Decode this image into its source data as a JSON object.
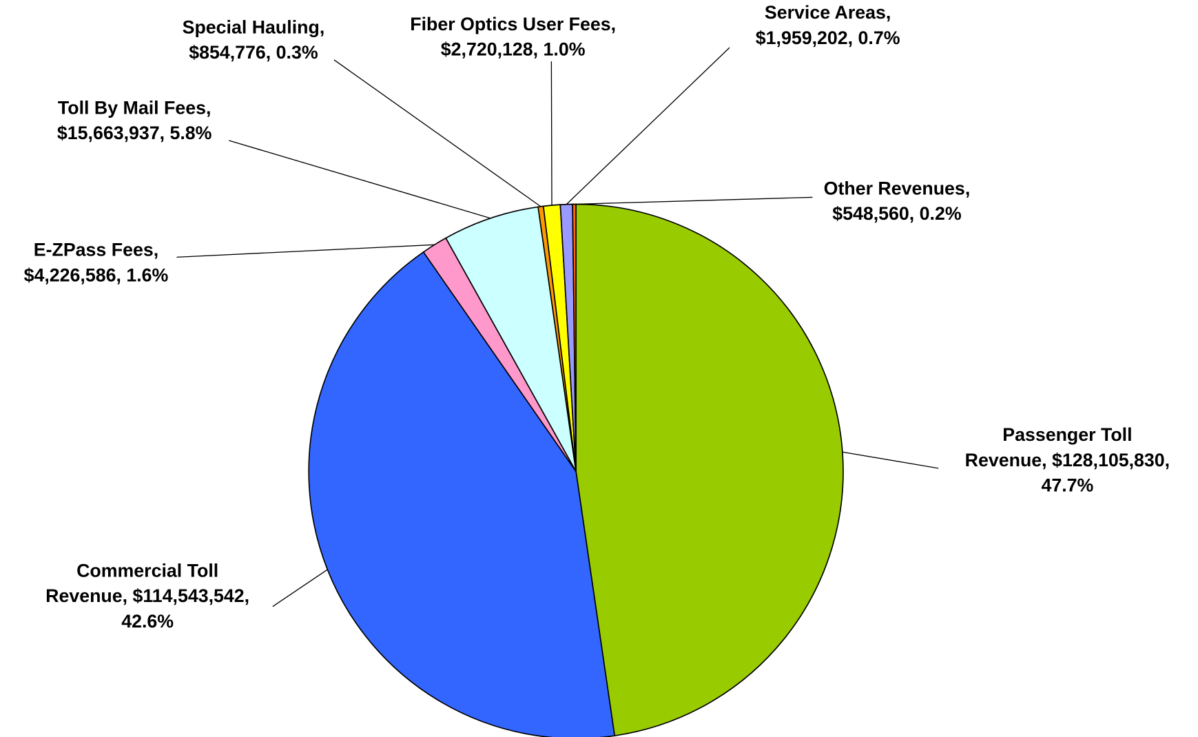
{
  "chart_data": {
    "type": "pie",
    "labels": [
      [
        "Passenger Toll",
        "Revenue, $128,105,830,",
        "47.7%"
      ],
      [
        "Commercial Toll",
        "Revenue, $114,543,542,",
        "42.6%"
      ],
      [
        "E-ZPass Fees,",
        "$4,226,586, 1.6%"
      ],
      [
        "Toll By Mail Fees,",
        "$15,663,937, 5.8%"
      ],
      [
        "Special Hauling,",
        "$854,776, 0.3%"
      ],
      [
        "Fiber Optics User Fees,",
        "$2,720,128, 1.0%"
      ],
      [
        "Service Areas,",
        "$1,959,202, 0.7%"
      ],
      [
        "Other Revenues,",
        "$548,560, 0.2%"
      ]
    ],
    "values": [
      128105830,
      114543542,
      4226586,
      15663937,
      854776,
      2720128,
      1959202,
      548560
    ],
    "percentages": [
      47.7,
      42.6,
      1.6,
      5.8,
      0.3,
      1.0,
      0.7,
      0.2
    ],
    "colors": [
      "#99cc00",
      "#3366ff",
      "#ff99cc",
      "#ccffff",
      "#ff9900",
      "#ffff00",
      "#9999ff",
      "#ff6600"
    ]
  }
}
